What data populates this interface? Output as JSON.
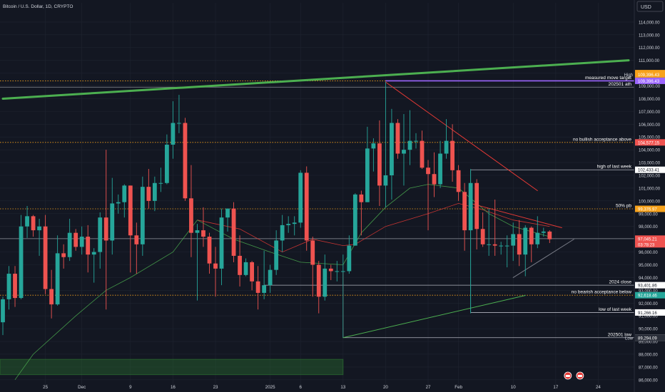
{
  "header": {
    "title": "Bitcoin / U.S. Dollar, 1D, CRYPTO"
  },
  "currency_button": {
    "label": "USD"
  },
  "colors": {
    "background": "#131722",
    "axis_background": "#131722",
    "up": "#26a69a",
    "down": "#ef5350",
    "grid": "#1f2430",
    "axis_text": "#d1d4dc",
    "orange": "#f7a21b",
    "green_line": "#4caf50",
    "purple": "#9c66ff",
    "red_line": "#e53935"
  },
  "chart_data": {
    "type": "candlestick",
    "y_axis": {
      "range": [
        85600,
        115500
      ],
      "ticks": [
        "114,000.00",
        "113,000.00",
        "112,000.00",
        "111,000.00",
        "110,000.00",
        "109,000.00",
        "108,000.00",
        "107,000.00",
        "106,000.00",
        "105,000.00",
        "104,000.00",
        "103,000.00",
        "102,000.00",
        "101,000.00",
        "100,000.00",
        "99,000.00",
        "98,000.00",
        "97,000.00",
        "96,000.00",
        "95,000.00",
        "94,000.00",
        "93,000.00",
        "92,000.00",
        "91,000.00",
        "90,000.00",
        "89,000.00",
        "88,000.00",
        "87,000.00",
        "86,000.00"
      ]
    },
    "x_axis": {
      "first_day": "2024-11-18",
      "last_day": "2025-03-01",
      "tick_labels": [
        {
          "label": "25",
          "date": "2024-11-25"
        },
        {
          "label": "Dec",
          "date": "2024-12-01"
        },
        {
          "label": "9",
          "date": "2024-12-09"
        },
        {
          "label": "16",
          "date": "2024-12-16"
        },
        {
          "label": "23",
          "date": "2024-12-23"
        },
        {
          "label": "2025",
          "date": "2025-01-01"
        },
        {
          "label": "6",
          "date": "2025-01-06"
        },
        {
          "label": "13",
          "date": "2025-01-13"
        },
        {
          "label": "20",
          "date": "2025-01-20"
        },
        {
          "label": "27",
          "date": "2025-01-27"
        },
        {
          "label": "Feb",
          "date": "2025-02-01"
        },
        {
          "label": "10",
          "date": "2025-02-10"
        },
        {
          "label": "17",
          "date": "2025-02-17"
        },
        {
          "label": "24",
          "date": "2025-02-24"
        }
      ]
    },
    "candles": [
      {
        "date": "2024-11-18",
        "o": 90500,
        "h": 92500,
        "l": 89500,
        "c": 92300
      },
      {
        "date": "2024-11-19",
        "o": 92300,
        "h": 94900,
        "l": 91500,
        "c": 94300
      },
      {
        "date": "2024-11-20",
        "o": 94300,
        "h": 94900,
        "l": 91700,
        "c": 92400
      },
      {
        "date": "2024-11-21",
        "o": 92400,
        "h": 98900,
        "l": 92300,
        "c": 98000
      },
      {
        "date": "2024-11-22",
        "o": 98000,
        "h": 99600,
        "l": 97100,
        "c": 98800
      },
      {
        "date": "2024-11-23",
        "o": 98800,
        "h": 98900,
        "l": 97200,
        "c": 97700
      },
      {
        "date": "2024-11-24",
        "o": 97700,
        "h": 98600,
        "l": 95700,
        "c": 98000
      },
      {
        "date": "2024-11-25",
        "o": 98000,
        "h": 98900,
        "l": 92700,
        "c": 93100
      },
      {
        "date": "2024-11-26",
        "o": 93100,
        "h": 94600,
        "l": 90800,
        "c": 91900
      },
      {
        "date": "2024-11-27",
        "o": 91900,
        "h": 97300,
        "l": 91800,
        "c": 95900
      },
      {
        "date": "2024-11-28",
        "o": 95900,
        "h": 96600,
        "l": 94700,
        "c": 95600
      },
      {
        "date": "2024-11-29",
        "o": 95600,
        "h": 98600,
        "l": 95300,
        "c": 97500
      },
      {
        "date": "2024-11-30",
        "o": 97500,
        "h": 97800,
        "l": 96100,
        "c": 96400
      },
      {
        "date": "2024-12-01",
        "o": 96400,
        "h": 98000,
        "l": 95800,
        "c": 97200
      },
      {
        "date": "2024-12-02",
        "o": 97200,
        "h": 98100,
        "l": 94400,
        "c": 95800
      },
      {
        "date": "2024-12-03",
        "o": 95800,
        "h": 96300,
        "l": 93600,
        "c": 96000
      },
      {
        "date": "2024-12-04",
        "o": 96000,
        "h": 99100,
        "l": 94700,
        "c": 98700
      },
      {
        "date": "2024-12-05",
        "o": 98700,
        "h": 104000,
        "l": 91500,
        "c": 96900
      },
      {
        "date": "2024-12-06",
        "o": 96900,
        "h": 101800,
        "l": 95800,
        "c": 99800
      },
      {
        "date": "2024-12-07",
        "o": 99800,
        "h": 100500,
        "l": 99000,
        "c": 99900
      },
      {
        "date": "2024-12-08",
        "o": 99900,
        "h": 101300,
        "l": 98700,
        "c": 101200
      },
      {
        "date": "2024-12-09",
        "o": 101200,
        "h": 101200,
        "l": 94400,
        "c": 97300
      },
      {
        "date": "2024-12-10",
        "o": 97300,
        "h": 98300,
        "l": 94300,
        "c": 96600
      },
      {
        "date": "2024-12-11",
        "o": 96600,
        "h": 101900,
        "l": 95700,
        "c": 101100
      },
      {
        "date": "2024-12-12",
        "o": 101100,
        "h": 102500,
        "l": 99400,
        "c": 100000
      },
      {
        "date": "2024-12-13",
        "o": 100000,
        "h": 101900,
        "l": 99200,
        "c": 101400
      },
      {
        "date": "2024-12-14",
        "o": 101400,
        "h": 102600,
        "l": 100700,
        "c": 101400
      },
      {
        "date": "2024-12-15",
        "o": 101400,
        "h": 105200,
        "l": 101300,
        "c": 104400
      },
      {
        "date": "2024-12-16",
        "o": 104400,
        "h": 107800,
        "l": 103300,
        "c": 106100
      },
      {
        "date": "2024-12-17",
        "o": 106100,
        "h": 108300,
        "l": 105300,
        "c": 106100
      },
      {
        "date": "2024-12-18",
        "o": 106100,
        "h": 106500,
        "l": 100000,
        "c": 100200
      },
      {
        "date": "2024-12-19",
        "o": 100200,
        "h": 102800,
        "l": 95600,
        "c": 97500
      },
      {
        "date": "2024-12-20",
        "o": 97500,
        "h": 98200,
        "l": 92200,
        "c": 97700
      },
      {
        "date": "2024-12-21",
        "o": 97700,
        "h": 99500,
        "l": 96400,
        "c": 97200
      },
      {
        "date": "2024-12-22",
        "o": 97200,
        "h": 97500,
        "l": 94300,
        "c": 95100
      },
      {
        "date": "2024-12-23",
        "o": 95100,
        "h": 96400,
        "l": 92500,
        "c": 94700
      },
      {
        "date": "2024-12-24",
        "o": 94700,
        "h": 99400,
        "l": 93400,
        "c": 98700
      },
      {
        "date": "2024-12-25",
        "o": 98700,
        "h": 99400,
        "l": 97600,
        "c": 99400
      },
      {
        "date": "2024-12-26",
        "o": 99400,
        "h": 99900,
        "l": 95200,
        "c": 95700
      },
      {
        "date": "2024-12-27",
        "o": 95700,
        "h": 97300,
        "l": 93300,
        "c": 94200
      },
      {
        "date": "2024-12-28",
        "o": 94200,
        "h": 95500,
        "l": 94100,
        "c": 95200
      },
      {
        "date": "2024-12-29",
        "o": 95200,
        "h": 95300,
        "l": 93000,
        "c": 93700
      },
      {
        "date": "2024-12-30",
        "o": 93700,
        "h": 94900,
        "l": 91500,
        "c": 92800
      },
      {
        "date": "2024-12-31",
        "o": 92800,
        "h": 96100,
        "l": 92300,
        "c": 93400
      },
      {
        "date": "2025-01-01",
        "o": 93400,
        "h": 95000,
        "l": 92800,
        "c": 94600
      },
      {
        "date": "2025-01-02",
        "o": 94600,
        "h": 97700,
        "l": 94200,
        "c": 96900
      },
      {
        "date": "2025-01-03",
        "o": 96900,
        "h": 98900,
        "l": 96000,
        "c": 98100
      },
      {
        "date": "2025-01-04",
        "o": 98100,
        "h": 98800,
        "l": 97500,
        "c": 98200
      },
      {
        "date": "2025-01-05",
        "o": 98200,
        "h": 98800,
        "l": 97300,
        "c": 98300
      },
      {
        "date": "2025-01-06",
        "o": 98300,
        "h": 102400,
        "l": 97900,
        "c": 102200
      },
      {
        "date": "2025-01-07",
        "o": 102200,
        "h": 102700,
        "l": 96100,
        "c": 96900
      },
      {
        "date": "2025-01-08",
        "o": 96900,
        "h": 97200,
        "l": 92500,
        "c": 95000
      },
      {
        "date": "2025-01-09",
        "o": 95000,
        "h": 95300,
        "l": 91200,
        "c": 92500
      },
      {
        "date": "2025-01-10",
        "o": 92500,
        "h": 95800,
        "l": 92200,
        "c": 94700
      },
      {
        "date": "2025-01-11",
        "o": 94700,
        "h": 95000,
        "l": 93800,
        "c": 94500
      },
      {
        "date": "2025-01-12",
        "o": 94500,
        "h": 95300,
        "l": 93700,
        "c": 94500
      },
      {
        "date": "2025-01-13",
        "o": 94500,
        "h": 95800,
        "l": 89300,
        "c": 94500
      },
      {
        "date": "2025-01-14",
        "o": 94500,
        "h": 97300,
        "l": 94300,
        "c": 96500
      },
      {
        "date": "2025-01-15",
        "o": 96500,
        "h": 100600,
        "l": 96500,
        "c": 100500
      },
      {
        "date": "2025-01-16",
        "o": 100500,
        "h": 100800,
        "l": 97300,
        "c": 99900
      },
      {
        "date": "2025-01-17",
        "o": 99900,
        "h": 105800,
        "l": 99900,
        "c": 104100
      },
      {
        "date": "2025-01-18",
        "o": 104100,
        "h": 104900,
        "l": 102300,
        "c": 104500
      },
      {
        "date": "2025-01-19",
        "o": 104500,
        "h": 106300,
        "l": 99600,
        "c": 101200
      },
      {
        "date": "2025-01-20",
        "o": 101200,
        "h": 109300,
        "l": 99500,
        "c": 102000
      },
      {
        "date": "2025-01-21",
        "o": 102000,
        "h": 107200,
        "l": 100100,
        "c": 106100
      },
      {
        "date": "2025-01-22",
        "o": 106100,
        "h": 106400,
        "l": 103300,
        "c": 103700
      },
      {
        "date": "2025-01-23",
        "o": 103700,
        "h": 106800,
        "l": 101200,
        "c": 104000
      },
      {
        "date": "2025-01-24",
        "o": 104000,
        "h": 107100,
        "l": 102800,
        "c": 104700
      },
      {
        "date": "2025-01-25",
        "o": 104700,
        "h": 105300,
        "l": 104100,
        "c": 104700
      },
      {
        "date": "2025-01-26",
        "o": 104700,
        "h": 105500,
        "l": 102500,
        "c": 102600
      },
      {
        "date": "2025-01-27",
        "o": 102600,
        "h": 103200,
        "l": 97700,
        "c": 102100
      },
      {
        "date": "2025-01-28",
        "o": 102100,
        "h": 103800,
        "l": 100300,
        "c": 101300
      },
      {
        "date": "2025-01-29",
        "o": 101300,
        "h": 104700,
        "l": 101000,
        "c": 103700
      },
      {
        "date": "2025-01-30",
        "o": 103700,
        "h": 106400,
        "l": 103300,
        "c": 104700
      },
      {
        "date": "2025-01-31",
        "o": 104700,
        "h": 106000,
        "l": 101500,
        "c": 102400
      },
      {
        "date": "2025-02-01",
        "o": 102400,
        "h": 102800,
        "l": 100000,
        "c": 100700
      },
      {
        "date": "2025-02-02",
        "o": 100700,
        "h": 101400,
        "l": 96100,
        "c": 97700
      },
      {
        "date": "2025-02-03",
        "o": 97700,
        "h": 102500,
        "l": 91200,
        "c": 101400
      },
      {
        "date": "2025-02-04",
        "o": 101400,
        "h": 101700,
        "l": 96200,
        "c": 97800
      },
      {
        "date": "2025-02-05",
        "o": 97800,
        "h": 99100,
        "l": 96400,
        "c": 96600
      },
      {
        "date": "2025-02-06",
        "o": 96600,
        "h": 99400,
        "l": 95700,
        "c": 96600
      },
      {
        "date": "2025-02-07",
        "o": 96600,
        "h": 100100,
        "l": 95700,
        "c": 96500
      },
      {
        "date": "2025-02-08",
        "o": 96500,
        "h": 96800,
        "l": 95800,
        "c": 96500
      },
      {
        "date": "2025-02-09",
        "o": 96500,
        "h": 97300,
        "l": 94800,
        "c": 96500
      },
      {
        "date": "2025-02-10",
        "o": 96500,
        "h": 98300,
        "l": 95300,
        "c": 97400
      },
      {
        "date": "2025-02-11",
        "o": 97400,
        "h": 98500,
        "l": 94900,
        "c": 95800
      },
      {
        "date": "2025-02-12",
        "o": 95800,
        "h": 98100,
        "l": 94100,
        "c": 97900
      },
      {
        "date": "2025-02-13",
        "o": 97900,
        "h": 98000,
        "l": 95200,
        "c": 96600
      },
      {
        "date": "2025-02-14",
        "o": 96600,
        "h": 98800,
        "l": 96300,
        "c": 97500
      },
      {
        "date": "2025-02-15",
        "o": 97500,
        "h": 97900,
        "l": 97200,
        "c": 97600
      },
      {
        "date": "2025-02-16",
        "o": 97600,
        "h": 97700,
        "l": 96700,
        "c": 97000
      }
    ],
    "moving_averages": [
      {
        "color": "red",
        "points": [
          [
            "2024-12-20",
            98500
          ],
          [
            "2024-12-27",
            97800
          ],
          [
            "2025-01-03",
            96000
          ],
          [
            "2025-01-08",
            97000
          ],
          [
            "2025-01-13",
            96500
          ],
          [
            "2025-01-15",
            96600
          ],
          [
            "2025-01-20",
            98000
          ],
          [
            "2025-01-27",
            99000
          ],
          [
            "2025-02-01",
            99800
          ],
          [
            "2025-02-05",
            99300
          ],
          [
            "2025-02-10",
            98500
          ],
          [
            "2025-02-16",
            98000
          ]
        ]
      },
      {
        "color": "green",
        "points": [
          [
            "2024-11-20",
            86000
          ],
          [
            "2024-11-23",
            88000
          ],
          [
            "2024-11-30",
            91000
          ],
          [
            "2024-12-05",
            93000
          ],
          [
            "2024-12-09",
            94000
          ],
          [
            "2024-12-16",
            96000
          ],
          [
            "2024-12-20",
            98500
          ],
          [
            "2024-12-26",
            97000
          ],
          [
            "2025-01-01",
            96000
          ],
          [
            "2025-01-06",
            95200
          ],
          [
            "2025-01-13",
            95000
          ],
          [
            "2025-01-16",
            97500
          ],
          [
            "2025-01-20",
            99500
          ],
          [
            "2025-01-24",
            101000
          ],
          [
            "2025-01-27",
            101300
          ],
          [
            "2025-02-01",
            101000
          ],
          [
            "2025-02-06",
            99000
          ],
          [
            "2025-02-10",
            98000
          ],
          [
            "2025-02-16",
            97200
          ]
        ]
      }
    ],
    "horizontal_levels": [
      {
        "price": 109396.43,
        "color": "orange",
        "style": "dotted",
        "tag": "109,396.43",
        "tag_label": "High"
      },
      {
        "price": 109396.43,
        "color": "purple",
        "style": "solid",
        "tag": "109,396.43",
        "label": "measured move target",
        "from": "2025-01-20"
      },
      {
        "price": 108900,
        "color": "gray",
        "style": "solid",
        "label": "202501 ath"
      },
      {
        "price": 104577.15,
        "color": "orange",
        "style": "dotted",
        "tag": "104,577.15",
        "label": "no bullish acceptance above"
      },
      {
        "price": 102433.41,
        "color": "white",
        "style": "solid",
        "tag": "102,433.41",
        "label": "high of last week",
        "from": "2025-02-03"
      },
      {
        "price": 99376.97,
        "color": "orange",
        "style": "dotted",
        "tag": "99,376.97",
        "label": "50% pb"
      },
      {
        "price": 97045.21,
        "color": "gray",
        "style": "solid",
        "tag": "97,045.21",
        "tag_sub": "03:78:23"
      },
      {
        "price": 93401.86,
        "color": "white",
        "style": "solid",
        "tag": "93,401.86",
        "label": "2024 close",
        "from": "2024-12-31"
      },
      {
        "price": 92618.46,
        "color": "orange",
        "style": "dotted",
        "tag": "92,618.46",
        "label": "no bearish acceptance below"
      },
      {
        "price": 91266.16,
        "color": "white",
        "style": "solid",
        "tag": "91,266.16",
        "label": "low of last week",
        "from": "2025-02-03"
      },
      {
        "price": 89294.09,
        "color": "white",
        "style": "solid",
        "tag": "89,294.09",
        "label": "202501 low",
        "from": "2025-01-13"
      },
      {
        "price": 89294.09,
        "color": "gray",
        "style": "none",
        "tag": "89,294.09",
        "tag_label": "Low"
      }
    ],
    "price_tag_110k": "110,000.00",
    "trendlines": [
      {
        "color": "green",
        "width": 3,
        "from": [
          "2024-11-18",
          108000
        ],
        "to": [
          "2025-03-01",
          111000
        ]
      },
      {
        "color": "red",
        "width": 1,
        "from": [
          "2025-01-20",
          109300
        ],
        "to": [
          "2025-02-14",
          100800
        ]
      },
      {
        "color": "red",
        "width": 1,
        "from": [
          "2025-02-03",
          99800
        ],
        "to": [
          "2025-02-18",
          97900
        ]
      },
      {
        "color": "green",
        "width": 1,
        "from": [
          "2025-01-13",
          89294
        ],
        "to": [
          "2025-02-12",
          92600
        ]
      },
      {
        "color": "gray",
        "width": 1,
        "from": [
          "2025-02-10",
          94000
        ],
        "to": [
          "2025-02-20",
          97000
        ]
      }
    ],
    "vertical_markers": [
      {
        "date": "2025-01-13",
        "from": 89294,
        "to": 94500,
        "color": "red"
      },
      {
        "date": "2025-02-03",
        "from": 91266,
        "to": 102433,
        "color": "teal"
      }
    ],
    "green_zone": {
      "from": "2024-11-18",
      "to": "2025-01-13",
      "low": 86400,
      "high": 87600
    },
    "event_markers": [
      "2025-02-19",
      "2025-02-21"
    ]
  }
}
